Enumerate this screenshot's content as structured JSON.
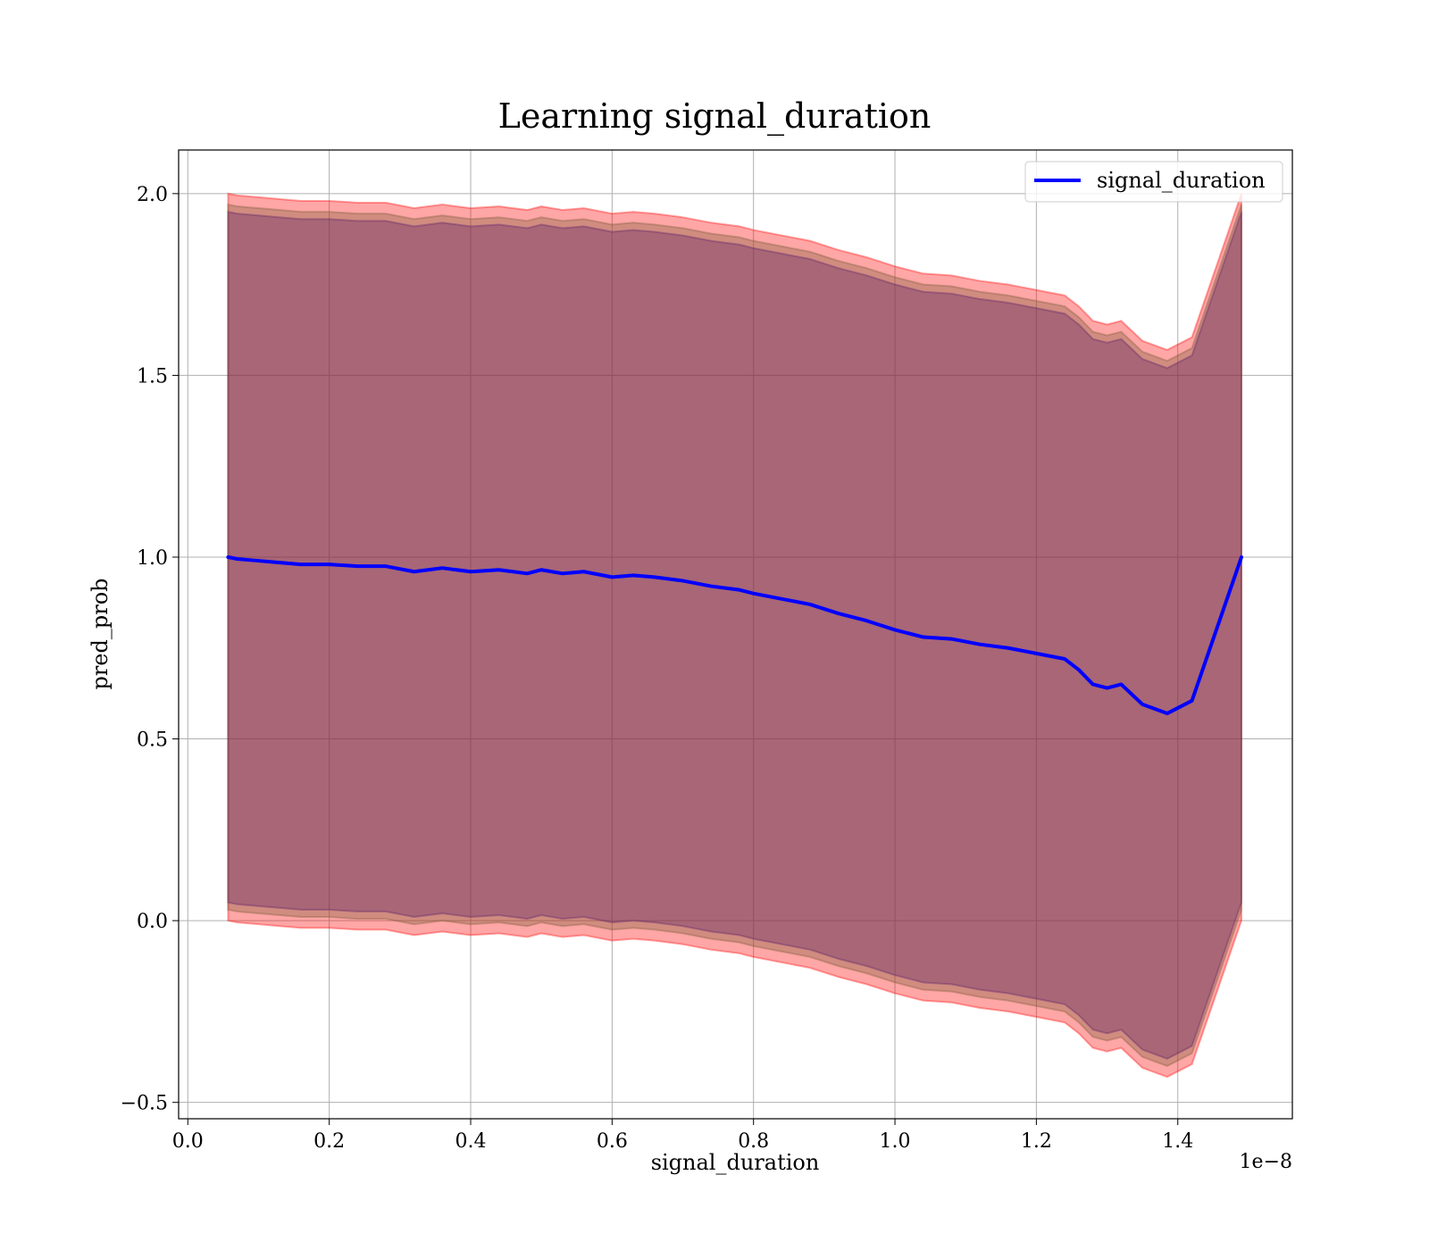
{
  "chart_data": {
    "type": "line",
    "title": "Learning signal_duration",
    "xlabel": "signal_duration",
    "ylabel": "pred_prob",
    "x_offset_label": "1e−8",
    "xlim": [
      -0.013,
      1.562
    ],
    "ylim": [
      -0.545,
      2.12
    ],
    "xticks": [
      0.0,
      0.2,
      0.4,
      0.6,
      0.8,
      1.0,
      1.2,
      1.4
    ],
    "xtick_labels": [
      "0.0",
      "0.2",
      "0.4",
      "0.6",
      "0.8",
      "1.0",
      "1.2",
      "1.4"
    ],
    "yticks": [
      -0.5,
      0.0,
      0.5,
      1.0,
      1.5,
      2.0
    ],
    "ytick_labels": [
      "−0.5",
      "0.0",
      "0.5",
      "1.0",
      "1.5",
      "2.0"
    ],
    "grid": true,
    "legend_position": "top-right",
    "series": [
      {
        "name": "signal_duration",
        "color": "#0000ff",
        "x": [
          0.057,
          0.07,
          0.1,
          0.13,
          0.16,
          0.2,
          0.24,
          0.28,
          0.32,
          0.36,
          0.4,
          0.44,
          0.48,
          0.5,
          0.53,
          0.56,
          0.6,
          0.63,
          0.66,
          0.7,
          0.74,
          0.78,
          0.8,
          0.84,
          0.88,
          0.92,
          0.96,
          1.0,
          1.04,
          1.08,
          1.12,
          1.16,
          1.2,
          1.24,
          1.26,
          1.28,
          1.3,
          1.32,
          1.35,
          1.385,
          1.42,
          1.49
        ],
        "y": [
          1.0,
          0.995,
          0.99,
          0.985,
          0.98,
          0.98,
          0.975,
          0.975,
          0.96,
          0.97,
          0.96,
          0.965,
          0.955,
          0.965,
          0.955,
          0.96,
          0.945,
          0.95,
          0.945,
          0.935,
          0.92,
          0.91,
          0.9,
          0.885,
          0.87,
          0.845,
          0.825,
          0.8,
          0.78,
          0.775,
          0.76,
          0.75,
          0.735,
          0.72,
          0.69,
          0.65,
          0.64,
          0.65,
          0.595,
          0.57,
          0.605,
          1.0
        ]
      }
    ],
    "bands": [
      {
        "color": "#ff0000",
        "opacity": 0.35,
        "upper_offset": 1.0,
        "lower_offset": 1.0
      },
      {
        "color": "#4b0082",
        "opacity": 0.35,
        "upper_offset": 0.95,
        "lower_offset": 0.95
      },
      {
        "color": "#7a5c3a",
        "opacity": 0.35,
        "upper_offset": 0.97,
        "lower_offset": 0.97
      }
    ]
  }
}
